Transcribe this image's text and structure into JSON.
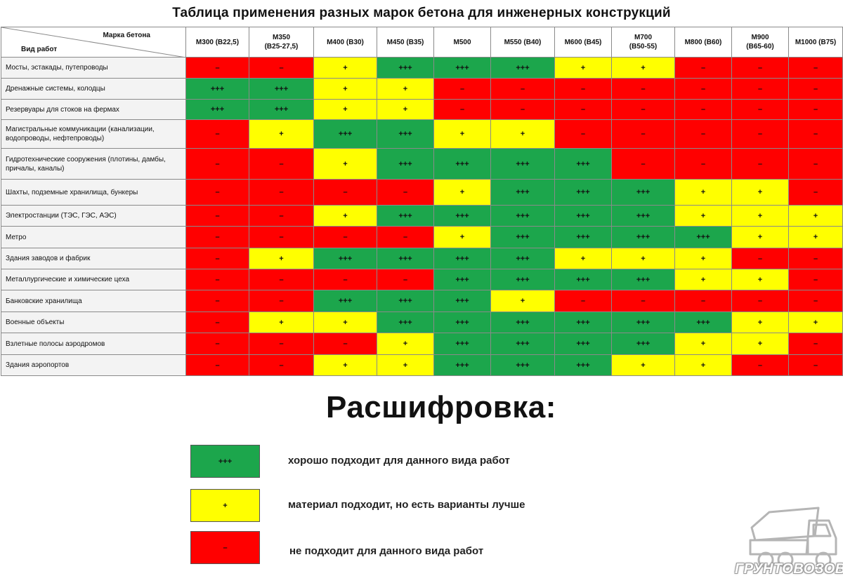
{
  "title": "Таблица применения разных марок бетона  для инженерных конструкций",
  "table": {
    "corner_top": "Марка бетона",
    "corner_bottom": "Вид работ",
    "columns": [
      {
        "name": "М300 (В22,5)",
        "sub": ""
      },
      {
        "name": "М350",
        "sub": "(В25-27,5)"
      },
      {
        "name": "М400 (В30)",
        "sub": ""
      },
      {
        "name": "М450 (В35)",
        "sub": ""
      },
      {
        "name": "М500",
        "sub": ""
      },
      {
        "name": "М550 (В40)",
        "sub": ""
      },
      {
        "name": "М600 (В45)",
        "sub": ""
      },
      {
        "name": "М700",
        "sub": "(В50-55)"
      },
      {
        "name": "М800 (В60)",
        "sub": ""
      },
      {
        "name": "М900",
        "sub": "(В65-60)"
      },
      {
        "name": "М1000 (В75)",
        "sub": ""
      }
    ],
    "rows": [
      {
        "work": "Мосты, эстакады, путепроводы",
        "values": [
          "–",
          "–",
          "+",
          "+++",
          "+++",
          "+++",
          "+",
          "+",
          "–",
          "–",
          "–"
        ]
      },
      {
        "work": "Дренажные системы, колодцы",
        "values": [
          "+++",
          "+++",
          "+",
          "+",
          "–",
          "–",
          "–",
          "–",
          "–",
          "–",
          "–"
        ]
      },
      {
        "work": "Резервуары для стоков на фермах",
        "values": [
          "+++",
          "+++",
          "+",
          "+",
          "–",
          "–",
          "–",
          "–",
          "–",
          "–",
          "–"
        ]
      },
      {
        "work": "Магистральные коммуникации (канализации, водопроводы, нефтепроводы)",
        "values": [
          "–",
          "+",
          "+++",
          "+++",
          "+",
          "+",
          "–",
          "–",
          "–",
          "–",
          "–"
        ]
      },
      {
        "work": "Гидротехнические сооружения (плотины, дамбы, причалы, каналы)",
        "values": [
          "–",
          "–",
          "+",
          "+++",
          "+++",
          "+++",
          "+++",
          "–",
          "–",
          "–",
          "–"
        ]
      },
      {
        "work": "Шахты, подземные хранилища, бункеры",
        "values": [
          "–",
          "–",
          "–",
          "–",
          "+",
          "+++",
          "+++",
          "+++",
          "+",
          "+",
          "–"
        ]
      },
      {
        "work": "Электростанции (ТЭС, ГЭС, АЭС)",
        "values": [
          "–",
          "–",
          "+",
          "+++",
          "+++",
          "+++",
          "+++",
          "+++",
          "+",
          "+",
          "+"
        ]
      },
      {
        "work": "Метро",
        "values": [
          "–",
          "–",
          "–",
          "–",
          "+",
          "+++",
          "+++",
          "+++",
          "+++",
          "+",
          "+"
        ]
      },
      {
        "work": "Здания заводов и фабрик",
        "values": [
          "–",
          "+",
          "+++",
          "+++",
          "+++",
          "+++",
          "+",
          "+",
          "+",
          "–",
          "–"
        ]
      },
      {
        "work": "Металлургические и химические цеха",
        "values": [
          "–",
          "–",
          "–",
          "–",
          "+++",
          "+++",
          "+++",
          "+++",
          "+",
          "+",
          "–"
        ]
      },
      {
        "work": "Банковские хранилища",
        "values": [
          "–",
          "–",
          "+++",
          "+++",
          "+++",
          "+",
          "–",
          "–",
          "–",
          "–",
          "–"
        ]
      },
      {
        "work": "Военные объекты",
        "values": [
          "–",
          "+",
          "+",
          "+++",
          "+++",
          "+++",
          "+++",
          "+++",
          "+++",
          "+",
          "+"
        ]
      },
      {
        "work": "Взлетные полосы аэродромов",
        "values": [
          "–",
          "–",
          "–",
          "+",
          "+++",
          "+++",
          "+++",
          "+++",
          "+",
          "+",
          "–"
        ]
      },
      {
        "work": "Здания аэропортов",
        "values": [
          "–",
          "–",
          "+",
          "+",
          "+++",
          "+++",
          "+++",
          "+",
          "+",
          "–",
          "–"
        ]
      }
    ]
  },
  "colors": {
    "good": "#1ca64c",
    "ok": "#ffff00",
    "bad": "#ff0000"
  },
  "legend": {
    "heading": "Расшифровка:",
    "items": [
      {
        "symbol": "+++",
        "color": "#1ca64c",
        "text": "хорошо подходит для данного вида работ"
      },
      {
        "symbol": "+",
        "color": "#ffff00",
        "text": "материал подходит, но есть варианты лучше"
      },
      {
        "symbol": "–",
        "color": "#ff0000",
        "text": "не подходит для данного вида   работ"
      }
    ]
  },
  "logo": {
    "text": "ГРУНТОВОЗОВ",
    "icon": "dump-truck-icon"
  }
}
